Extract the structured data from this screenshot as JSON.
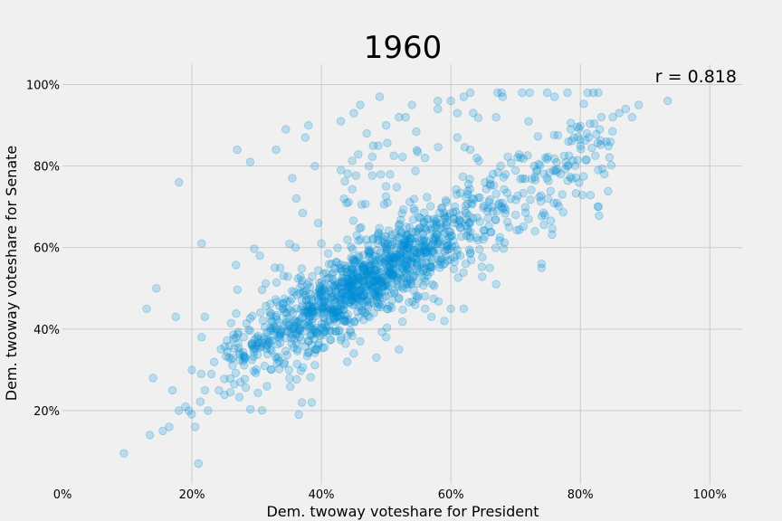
{
  "chart_data": {
    "type": "scatter",
    "title": "1960",
    "xlabel": "Dem. twoway voteshare for President",
    "ylabel": "Dem. twoway voteshare for Senate",
    "annotation": "r = 0.818",
    "r": 0.818,
    "xlim": [
      0,
      1.05
    ],
    "ylim": [
      0.02,
      1.05
    ],
    "xticks": [
      0,
      0.2,
      0.4,
      0.6,
      0.8,
      1.0
    ],
    "xtick_labels": [
      "0%",
      "20%",
      "40%",
      "60%",
      "80%",
      "100%"
    ],
    "yticks": [
      0.2,
      0.4,
      0.6,
      0.8,
      1.0
    ],
    "ytick_labels": [
      "20%",
      "40%",
      "60%",
      "80%",
      "100%"
    ],
    "grid": true,
    "color": "#008fd5",
    "n_points": 1500,
    "series": [
      {
        "x": [
          0.095,
          0.135,
          0.14,
          0.155,
          0.165,
          0.175,
          0.18,
          0.19,
          0.195,
          0.2,
          0.205,
          0.21,
          0.215,
          0.22,
          0.225,
          0.23,
          0.13,
          0.145,
          0.17,
          0.18,
          0.215,
          0.22,
          0.27,
          0.275,
          0.28,
          0.29,
          0.305,
          0.33,
          0.345,
          0.355,
          0.36,
          0.365,
          0.37,
          0.375,
          0.38,
          0.385,
          0.39,
          0.395,
          0.35,
          0.37,
          0.4,
          0.43,
          0.435,
          0.44,
          0.45,
          0.46,
          0.47,
          0.48,
          0.485,
          0.49,
          0.5,
          0.52,
          0.54,
          0.43,
          0.5,
          0.52,
          0.46,
          0.45,
          0.5,
          0.53,
          0.56,
          0.57,
          0.58,
          0.59,
          0.6,
          0.61,
          0.62,
          0.63,
          0.55,
          0.58,
          0.62,
          0.6,
          0.61,
          0.64,
          0.65,
          0.66,
          0.67,
          0.68,
          0.69,
          0.7,
          0.71,
          0.72,
          0.73,
          0.74,
          0.75,
          0.76,
          0.77,
          0.78,
          0.79,
          0.8,
          0.81,
          0.82,
          0.83,
          0.84,
          0.85,
          0.86,
          0.87,
          0.88,
          0.89,
          0.935,
          0.74,
          0.67,
          0.63
        ],
        "y": [
          0.095,
          0.14,
          0.28,
          0.15,
          0.16,
          0.43,
          0.76,
          0.21,
          0.2,
          0.3,
          0.16,
          0.07,
          0.61,
          0.43,
          0.2,
          0.29,
          0.45,
          0.5,
          0.25,
          0.2,
          0.38,
          0.25,
          0.84,
          0.27,
          0.38,
          0.81,
          0.58,
          0.84,
          0.89,
          0.77,
          0.6,
          0.19,
          0.22,
          0.87,
          0.9,
          0.22,
          0.8,
          0.66,
          0.3,
          0.47,
          0.61,
          0.91,
          0.72,
          0.32,
          0.93,
          0.95,
          0.88,
          0.85,
          0.33,
          0.97,
          0.38,
          0.35,
          0.95,
          0.79,
          0.9,
          0.92,
          0.37,
          0.34,
          0.75,
          0.92,
          0.82,
          0.43,
          0.96,
          0.42,
          0.96,
          0.87,
          0.45,
          0.98,
          0.48,
          0.94,
          0.97,
          0.45,
          0.93,
          0.82,
          0.62,
          0.55,
          0.92,
          0.97,
          0.65,
          0.68,
          0.98,
          0.91,
          0.64,
          0.56,
          0.72,
          0.97,
          0.78,
          0.98,
          0.87,
          0.85,
          0.88,
          0.98,
          0.89,
          0.86,
          0.92,
          0.93,
          0.94,
          0.92,
          0.95,
          0.96,
          0.55,
          0.51,
          0.84
        ]
      }
    ]
  }
}
